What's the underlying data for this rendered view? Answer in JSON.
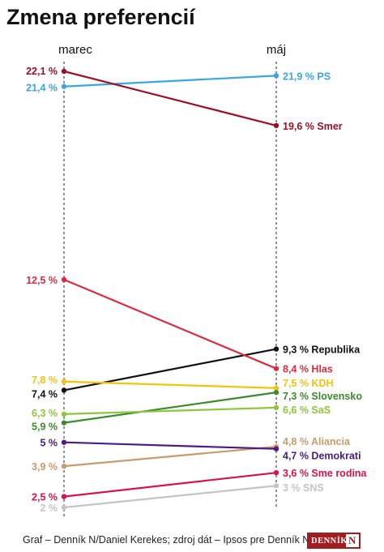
{
  "title": "Zmena preferencií",
  "footer": "Graf – Denník N/Daniel Kerekes; zdroj dát – Ipsos pre Denník N",
  "logo": {
    "text": "DENNÍK",
    "mark": "N",
    "color": "#a11d21"
  },
  "chart_data": {
    "type": "slope",
    "categories": [
      "marec",
      "máj"
    ],
    "ylim": [
      2,
      22.1
    ],
    "grid": false,
    "series": [
      {
        "name": "PS",
        "values": [
          21.4,
          21.9
        ],
        "left_label": "21,4 %",
        "right_label": "21,9 % PS",
        "color": "#3aa7dc"
      },
      {
        "name": "Smer",
        "values": [
          22.1,
          19.6
        ],
        "left_label": "22,1 %",
        "right_label": "19,6 % Smer",
        "color": "#9b1027"
      },
      {
        "name": "Republika",
        "values": [
          7.4,
          9.3
        ],
        "left_label": "7,4 %",
        "right_label": "9,3 % Republika",
        "color": "#111111"
      },
      {
        "name": "Hlas",
        "values": [
          12.5,
          8.4
        ],
        "left_label": "12,5 %",
        "right_label": "8,4 % Hlas",
        "color": "#d92d3f"
      },
      {
        "name": "KDH",
        "values": [
          7.8,
          7.5
        ],
        "left_label": "7,8 %",
        "right_label": "7,5 % KDH",
        "color": "#f2c40f"
      },
      {
        "name": "Slovensko",
        "values": [
          5.9,
          7.3
        ],
        "left_label": "5,9 %",
        "right_label": "7,3 % Slovensko",
        "color": "#3b8a2e"
      },
      {
        "name": "SaS",
        "values": [
          6.3,
          6.6
        ],
        "left_label": "6,3 %",
        "right_label": "6,6 % SaS",
        "color": "#8cc63f"
      },
      {
        "name": "Aliancia",
        "values": [
          3.9,
          4.8
        ],
        "left_label": "3,9 %",
        "right_label": "4,8 % Aliancia",
        "color": "#c89b6a"
      },
      {
        "name": "Demokrati",
        "values": [
          5.0,
          4.7
        ],
        "left_label": "5 %",
        "right_label": "4,7 % Demokrati",
        "color": "#4b1c86"
      },
      {
        "name": "Sme rodina",
        "values": [
          2.5,
          3.6
        ],
        "left_label": "2,5 %",
        "right_label": "3,6 % Sme rodina",
        "color": "#d5134f"
      },
      {
        "name": "SNS",
        "values": [
          2.0,
          3.0
        ],
        "left_label": "2 %",
        "right_label": "3 % SNS",
        "color": "#c4c4c4"
      }
    ]
  }
}
